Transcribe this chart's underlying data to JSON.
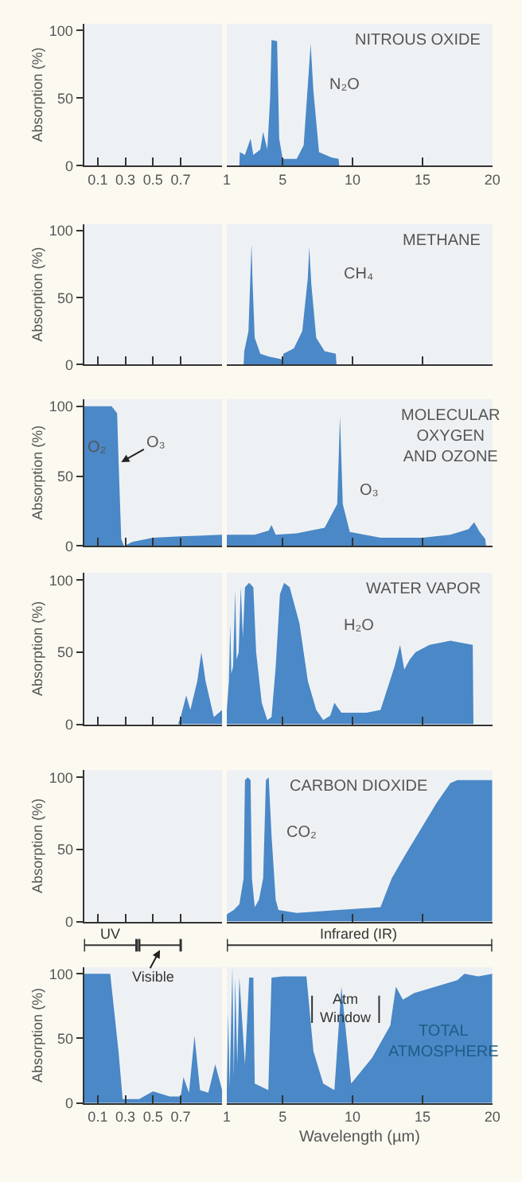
{
  "chart_data": [
    {
      "type": "area",
      "ylabel": "Absorption (%)",
      "xlim": [
        0,
        1
      ],
      "xticks": [
        0.1,
        0.3,
        0.5,
        0.7
      ],
      "ylim": [
        0,
        105
      ],
      "yticks": [
        0,
        50,
        100
      ]
    },
    {
      "type": "area",
      "title": "NITROUS OXIDE",
      "annotations": [
        "N₂O"
      ],
      "xlim": [
        1,
        20
      ],
      "xticks": [
        1,
        5,
        10,
        15,
        20
      ],
      "ylim": [
        0,
        105
      ],
      "yticks": [
        0,
        50,
        100
      ],
      "tick_labels": "x",
      "series": [
        {
          "color": "#4a88c7",
          "x": [
            1.9,
            1.93,
            2.3,
            2.7,
            2.9,
            3.4,
            3.6,
            3.9,
            4.1,
            4.2,
            4.6,
            4.75,
            5.0,
            6.0,
            6.5,
            6.8,
            7.0,
            7.2,
            7.6,
            8.5,
            9.0,
            9.05
          ],
          "values": [
            0,
            10,
            8,
            20,
            8,
            12,
            25,
            12,
            50,
            93,
            92,
            20,
            5,
            5,
            15,
            60,
            90,
            55,
            10,
            6,
            5,
            0
          ]
        }
      ]
    },
    {
      "type": "area",
      "ylabel": "Absorption (%)",
      "xlim": [
        0,
        1
      ],
      "xticks": [
        0.1,
        0.3,
        0.5,
        0.7
      ],
      "ylim": [
        0,
        105
      ],
      "yticks": [
        0,
        50,
        100
      ],
      "tick_labels": "y"
    },
    {
      "type": "area",
      "title": "METHANE",
      "annotations": [
        "CH₄"
      ],
      "xlim": [
        1,
        20
      ],
      "xticks": [
        1,
        5,
        10,
        15,
        20
      ],
      "ylim": [
        0,
        105
      ],
      "yticks": [
        0,
        50,
        100
      ],
      "tick_labels": false,
      "series": [
        {
          "color": "#4a88c7",
          "x": [
            2.2,
            2.25,
            2.55,
            2.7,
            2.77,
            2.85,
            3.0,
            3.4,
            4.0,
            4.9,
            5.0,
            5.05,
            5.8,
            6.4,
            6.8,
            6.9,
            7.05,
            7.4,
            8.0,
            8.8,
            8.85
          ],
          "values": [
            0,
            10,
            25,
            70,
            90,
            60,
            20,
            8,
            6,
            4,
            0,
            8,
            12,
            25,
            65,
            88,
            60,
            20,
            10,
            8,
            0
          ]
        }
      ]
    },
    {
      "type": "area",
      "ylabel": "Absorption (%)",
      "annotations": [
        "O₂",
        "O₃"
      ],
      "xlim": [
        0,
        1
      ],
      "xticks": [
        0.1,
        0.3,
        0.5,
        0.7
      ],
      "ylim": [
        0,
        105
      ],
      "yticks": [
        0,
        50,
        100
      ],
      "tick_labels": "y",
      "series": [
        {
          "color": "#4a88c7",
          "x": [
            0,
            0.2,
            0.24,
            0.25,
            0.27,
            0.29,
            0.35,
            0.5,
            0.7,
            1
          ],
          "values": [
            100,
            100,
            95,
            62,
            5,
            0,
            3,
            6,
            7,
            8
          ]
        }
      ]
    },
    {
      "type": "area",
      "title": "MOLECULAR\nOXYGEN\nAND OZONE",
      "annotations": [
        "O₃"
      ],
      "xlim": [
        1,
        20
      ],
      "xticks": [
        1,
        5,
        10,
        15,
        20
      ],
      "ylim": [
        0,
        105
      ],
      "yticks": [
        0,
        50,
        100
      ],
      "tick_labels": false,
      "series": [
        {
          "color": "#4a88c7",
          "x": [
            1,
            3,
            4.0,
            4.2,
            4.5,
            6,
            8,
            8.9,
            9.1,
            9.3,
            9.8,
            12,
            15,
            17,
            18.3,
            18.7,
            19.1,
            19.5,
            19.55
          ],
          "values": [
            8,
            8,
            11,
            15,
            8,
            9,
            13,
            30,
            93,
            30,
            10,
            6,
            6,
            8,
            12,
            17,
            10,
            5,
            0
          ]
        }
      ]
    },
    {
      "type": "area",
      "ylabel": "Absorption (%)",
      "xlim": [
        0,
        1
      ],
      "xticks": [
        0.1,
        0.3,
        0.5,
        0.7
      ],
      "ylim": [
        0,
        105
      ],
      "yticks": [
        0,
        50,
        100
      ],
      "tick_labels": "y",
      "series": [
        {
          "color": "#4a88c7",
          "x": [
            0.68,
            0.7,
            0.74,
            0.77,
            0.82,
            0.85,
            0.88,
            0.94,
            1.0
          ],
          "values": [
            0,
            5,
            20,
            10,
            30,
            50,
            30,
            5,
            10
          ]
        }
      ]
    },
    {
      "type": "area",
      "title": "WATER VAPOR",
      "annotations": [
        "H₂O"
      ],
      "xlim": [
        1,
        20
      ],
      "xticks": [
        1,
        5,
        10,
        15,
        20
      ],
      "ylim": [
        0,
        105
      ],
      "yticks": [
        0,
        50,
        100
      ],
      "tick_labels": false,
      "series": [
        {
          "color": "#4a88c7",
          "x": [
            1.0,
            1.15,
            1.25,
            1.32,
            1.45,
            1.6,
            1.7,
            1.85,
            2.0,
            2.15,
            2.3,
            2.6,
            2.9,
            3.1,
            3.5,
            3.9,
            4.2,
            4.5,
            4.8,
            5.1,
            5.5,
            6.2,
            6.8,
            7.4,
            7.9,
            8.4,
            8.7,
            9.2,
            11,
            12,
            12.5,
            13.0,
            13.4,
            13.7,
            14.1,
            14.5,
            15.5,
            17,
            18.6,
            18.65
          ],
          "values": [
            10,
            30,
            70,
            35,
            40,
            93,
            45,
            50,
            95,
            60,
            95,
            98,
            95,
            50,
            15,
            3,
            5,
            40,
            90,
            98,
            95,
            70,
            30,
            10,
            3,
            6,
            15,
            8,
            8,
            10,
            25,
            40,
            55,
            38,
            45,
            50,
            55,
            58,
            55,
            0
          ]
        }
      ]
    },
    {
      "type": "area",
      "ylabel": "Absorption (%)",
      "xlim": [
        0,
        1
      ],
      "xticks": [
        0.1,
        0.3,
        0.5,
        0.7
      ],
      "ylim": [
        0,
        105
      ],
      "yticks": [
        0,
        50,
        100
      ],
      "tick_labels": "y"
    },
    {
      "type": "area",
      "title": "CARBON DIOXIDE",
      "annotations": [
        "CO₂"
      ],
      "xlim": [
        1,
        20
      ],
      "xticks": [
        1,
        5,
        10,
        15,
        20
      ],
      "ylim": [
        0,
        105
      ],
      "yticks": [
        0,
        50,
        100
      ],
      "tick_labels": false,
      "series": [
        {
          "color": "#4a88c7",
          "x": [
            1.0,
            1.5,
            1.9,
            2.2,
            2.3,
            2.5,
            2.7,
            2.8,
            3.0,
            3.3,
            3.6,
            3.8,
            4.0,
            4.2,
            4.5,
            4.7,
            6,
            9,
            12,
            12.4,
            12.8,
            14,
            16,
            17,
            17.5,
            20
          ],
          "values": [
            5,
            8,
            12,
            30,
            98,
            100,
            98,
            30,
            10,
            15,
            30,
            98,
            100,
            60,
            15,
            8,
            6,
            8,
            10,
            20,
            30,
            50,
            82,
            96,
            98,
            98
          ]
        }
      ]
    },
    {
      "type": "area",
      "ylabel": "Absorption (%)",
      "annotations": [
        "UV",
        "Visible"
      ],
      "xlim": [
        0,
        1
      ],
      "xticks": [
        0.1,
        0.3,
        0.5,
        0.7
      ],
      "ylim": [
        0,
        105
      ],
      "yticks": [
        0,
        50,
        100
      ],
      "series": [
        {
          "color": "#4a88c7",
          "x": [
            0,
            0.19,
            0.25,
            0.28,
            0.4,
            0.5,
            0.62,
            0.7,
            0.72,
            0.76,
            0.8,
            0.84,
            0.9,
            0.95,
            1.0
          ],
          "values": [
            100,
            100,
            40,
            3,
            3,
            9,
            5,
            5,
            20,
            8,
            52,
            10,
            8,
            30,
            10
          ]
        }
      ]
    },
    {
      "type": "area",
      "title": "TOTAL\nATMOSPHERE",
      "xlabel": "Wavelength (µm)",
      "annotations": [
        "Infrared (IR)",
        "Atm\nWindow"
      ],
      "xlim": [
        1,
        20
      ],
      "xticks": [
        1,
        5,
        10,
        15,
        20
      ],
      "ylim": [
        0,
        105
      ],
      "yticks": [
        0,
        50,
        100
      ],
      "tick_labels": "x",
      "series": [
        {
          "color": "#4a88c7",
          "x": [
            1.0,
            1.1,
            1.2,
            1.4,
            1.5,
            1.6,
            1.75,
            1.9,
            2.3,
            2.6,
            2.9,
            3.0,
            3.97,
            4.2,
            5.0,
            6.7,
            7.2,
            7.9,
            8.7,
            9.2,
            9.9,
            11.4,
            12.7,
            13.1,
            13.6,
            14.4,
            17.5,
            18.0,
            19.0,
            20
          ],
          "values": [
            10,
            70,
            12,
            105,
            20,
            97,
            30,
            97,
            30,
            97,
            97,
            15,
            10,
            97,
            98,
            98,
            40,
            15,
            10,
            90,
            15,
            35,
            60,
            90,
            80,
            85,
            95,
            100,
            98,
            100
          ]
        }
      ]
    }
  ]
}
